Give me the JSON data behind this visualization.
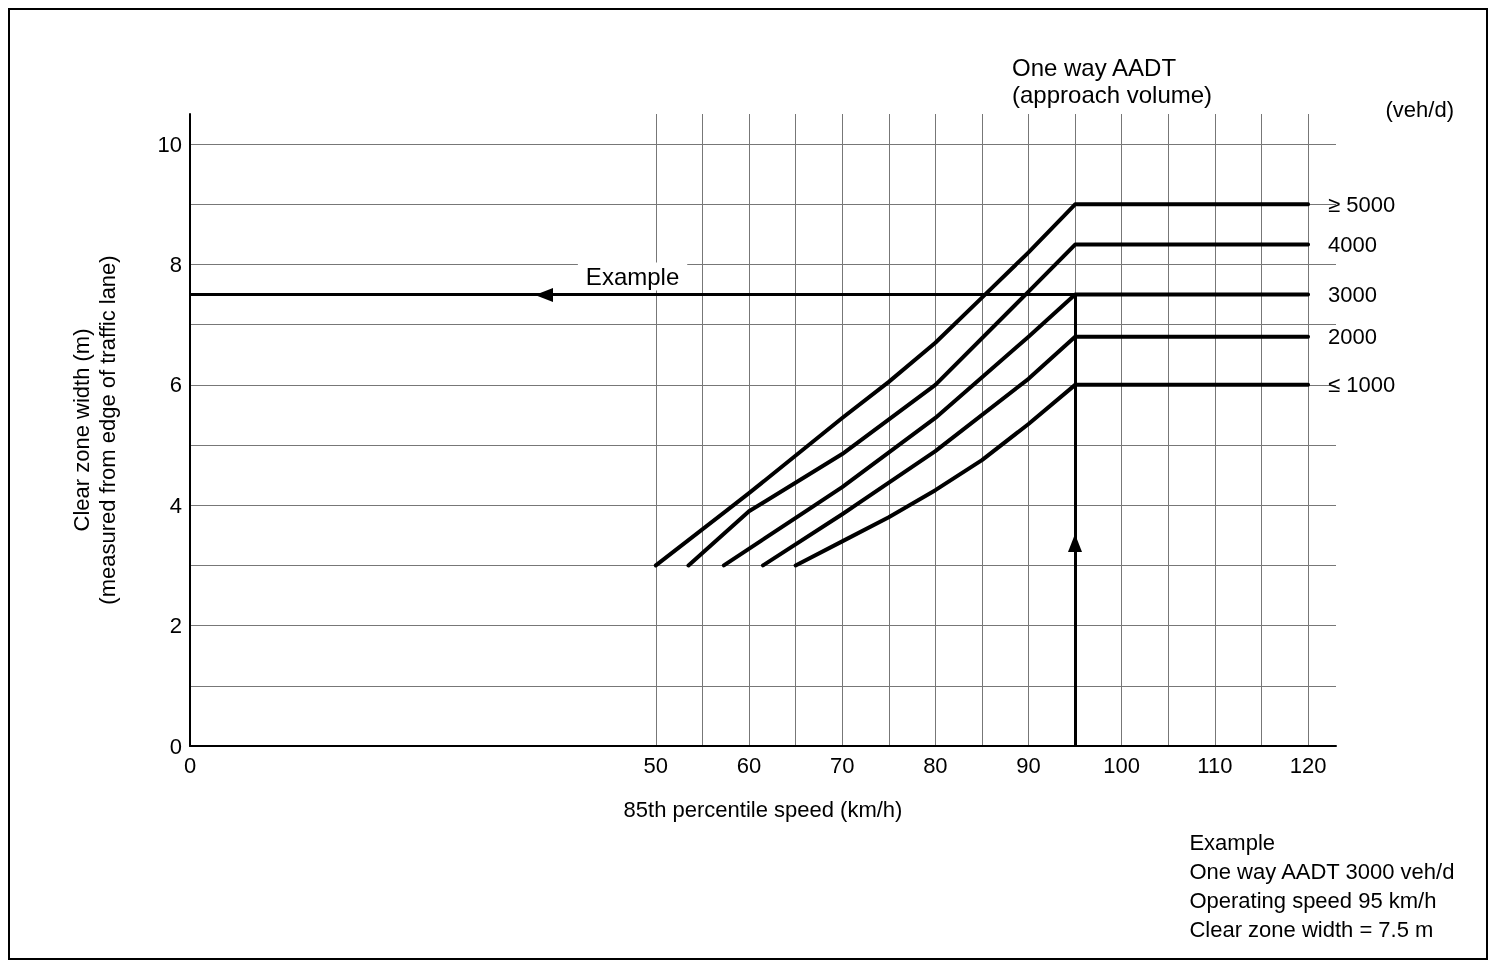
{
  "chart_data": {
    "type": "line",
    "xlabel": "85th percentile speed (km/h)",
    "ylabel": "Clear zone width (m)\n(measured from edge of traffic lane)",
    "legend_title": "One way AADT\n(approach volume)",
    "annotations": [
      "(veh/d)",
      "Example\nOne way AADT 3000 veh/d\nOperating speed 95 km/h\nClear zone width = 7.5 m"
    ],
    "xlim": [
      0,
      123
    ],
    "xticks": [
      0,
      50,
      {
        "value": 55,
        "label": null
      },
      60,
      {
        "value": 65,
        "label": null
      },
      70,
      {
        "value": 75,
        "label": null
      },
      80,
      {
        "value": 85,
        "label": null
      },
      90,
      {
        "value": 95,
        "label": null
      },
      100,
      {
        "value": 105,
        "label": null
      },
      110,
      {
        "value": 115,
        "label": null
      },
      120
    ],
    "ylim": [
      0,
      10.5
    ],
    "yticks": [
      0,
      {
        "value": 1,
        "label": null
      },
      2,
      {
        "value": 3,
        "label": null
      },
      4,
      {
        "value": 5,
        "label": null
      },
      6,
      {
        "value": 7,
        "label": null
      },
      8,
      {
        "value": 9,
        "label": null
      },
      10
    ],
    "grid": true,
    "legend": false,
    "marker": "none",
    "line_style": "solid",
    "series": [
      {
        "name": "≥ 5000",
        "color": "#000000",
        "x": [
          50,
          60,
          70,
          75,
          80,
          85,
          90,
          95,
          120
        ],
        "values": [
          3,
          4.2,
          5.45,
          6.05,
          6.7,
          7.45,
          8.2,
          9,
          9
        ]
      },
      {
        "name": "4000",
        "color": "#000000",
        "x": [
          53.5,
          60,
          70,
          80,
          90,
          95,
          120
        ],
        "values": [
          3,
          3.9,
          4.85,
          6.0,
          7.55,
          8.33,
          8.33
        ]
      },
      {
        "name": "3000",
        "color": "#000000",
        "x": [
          57.3,
          70,
          80,
          90,
          95,
          120
        ],
        "values": [
          3,
          4.3,
          5.45,
          6.8,
          7.5,
          7.5
        ]
      },
      {
        "name": "2000",
        "color": "#000000",
        "x": [
          61.5,
          70,
          80,
          90,
          95,
          120
        ],
        "values": [
          3,
          3.85,
          4.9,
          6.1,
          6.8,
          6.8
        ]
      },
      {
        "name": "≤ 1000",
        "color": "#000000",
        "x": [
          65,
          70,
          75,
          80,
          85,
          90,
          95,
          120
        ],
        "values": [
          3,
          3.4,
          3.8,
          4.25,
          4.75,
          5.35,
          6.0,
          6.0
        ]
      }
    ],
    "ref_lines": [
      {
        "axis": "y",
        "value": 7.5,
        "label": "Example",
        "color": "#000000",
        "line_style": "solid"
      },
      {
        "axis": "x",
        "value": 95,
        "color": "#000000",
        "line_style": "solid"
      }
    ]
  }
}
